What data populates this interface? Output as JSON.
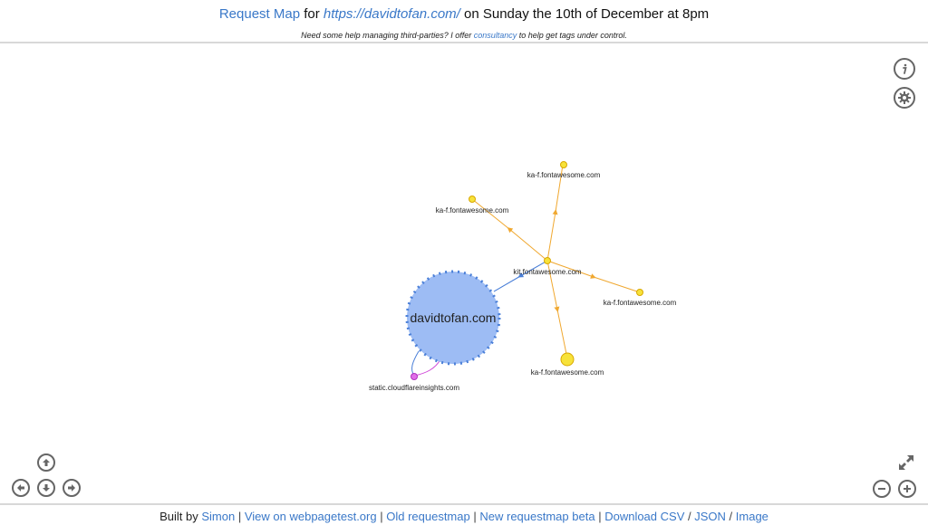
{
  "header": {
    "title_link": "Request Map",
    "title_for": "for",
    "title_url": "https://davidtofan.com/",
    "title_rest": "on Sunday the 10th of December at 8pm",
    "subtitle_before": "Need some help managing third-parties? I offer",
    "subtitle_link": "consultancy",
    "subtitle_after": "to help get tags under control."
  },
  "graph": {
    "nodes": {
      "main": "davidtofan.com",
      "kit": "kit.fontawesome.com",
      "ka1": "ka-f.fontawesome.com",
      "ka2": "ka-f.fontawesome.com",
      "ka3": "ka-f.fontawesome.com",
      "ka4": "ka-f.fontawesome.com",
      "cf": "static.cloudflareinsights.com"
    },
    "colors": {
      "main_fill": "#9dbcf4",
      "main_stroke": "#4a7fd8",
      "font_node": "#f7e23a",
      "font_stroke": "#d8a800",
      "font_edge": "#f0a830",
      "kit_edge": "#4a7fd8",
      "cf_node": "#e070e8",
      "cf_edge": "#d048d8"
    }
  },
  "controls": {
    "info_icon": "info-icon",
    "settings_icon": "gear-icon",
    "pan_up": "arrow-up-icon",
    "pan_left": "arrow-left-icon",
    "pan_down": "arrow-down-icon",
    "pan_right": "arrow-right-icon",
    "zoom_out": "minus-icon",
    "zoom_in": "plus-icon",
    "fullscreen": "expand-icon"
  },
  "footer": {
    "built_by": "Built by",
    "simon": "Simon",
    "sep1": "|",
    "webpagetest": "View on webpagetest.org",
    "sep2": "|",
    "old_map": "Old requestmap",
    "sep3": "|",
    "new_map": "New requestmap beta",
    "sep4": "|",
    "csv": "Download CSV",
    "slash1": "/",
    "json": "JSON",
    "slash2": "/",
    "image": "Image"
  }
}
